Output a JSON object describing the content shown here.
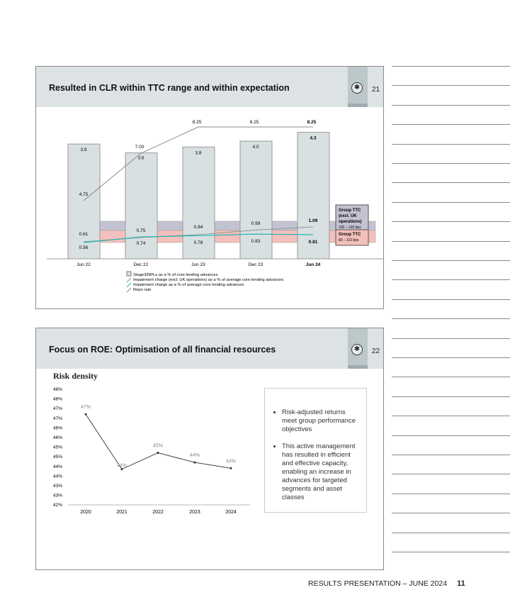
{
  "slide1": {
    "title": "Resulted in CLR within TTC range and within expectation",
    "page": "21",
    "chart_data": {
      "type": "bar",
      "categories": [
        "Jun 22",
        "Dec 22",
        "Jun 23",
        "Dec 23",
        "Jun 24"
      ],
      "series": [
        {
          "name": "Stage3/NPLs as a % of core lending advances",
          "values": [
            3.9,
            3.6,
            3.8,
            4.0,
            4.3
          ],
          "labels": [
            "3.9",
            "3.6",
            "3.8",
            "4.0",
            "4.3"
          ]
        },
        {
          "name": "Impairment charge (excl. UK operations)  as a % of average core lending advances",
          "values": [
            0.61,
            0.75,
            0.84,
            0.99,
            1.09
          ],
          "labels": [
            "0.61",
            "0.75",
            "0.84",
            "0.99",
            "1.09"
          ]
        },
        {
          "name": "Impairment charge as a % of average core lending advances",
          "values": [
            0.56,
            0.74,
            0.78,
            0.83,
            0.81
          ],
          "labels": [
            "0.56",
            "0.74",
            "0.78",
            "0.83",
            "0.81"
          ]
        },
        {
          "name": "Repo rate",
          "values": [
            4.75,
            7.0,
            8.25,
            8.25,
            8.25
          ],
          "labels": [
            "4.75",
            "7.00",
            "8.25",
            "8.25",
            "8.25"
          ]
        }
      ],
      "bands": [
        {
          "title": "Group TTC (excl. UK operations)",
          "range": "100 – 130 bps",
          "color": "#c3c2d2"
        },
        {
          "title": "Group TTC",
          "range": "80 – 110 bps",
          "color": "#f4c0bb"
        }
      ]
    }
  },
  "slide2": {
    "title": "Focus on ROE: Optimisation of all financial resources",
    "page": "22",
    "chart_data": {
      "type": "line",
      "title": "Risk density",
      "categories": [
        "2020",
        "2021",
        "2022",
        "2023",
        "2024"
      ],
      "values": [
        46.7,
        43.85,
        44.7,
        44.2,
        43.9
      ],
      "labels": [
        "47%",
        "44%",
        "45%",
        "44%",
        "44%"
      ],
      "yticks": [
        "48%",
        "48%",
        "47%",
        "47%",
        "46%",
        "46%",
        "45%",
        "45%",
        "44%",
        "44%",
        "43%",
        "43%",
        "42%"
      ],
      "ylim": [
        42,
        48
      ]
    },
    "bullets": [
      "Risk-adjusted returns meet group performance objectives",
      "This active management has resulted in efficient and effective capacity, enabling an increase in advances for targeted segments and asset classes"
    ]
  },
  "footer": {
    "text": "RESULTS PRESENTATION – JUNE 2024",
    "page": "11"
  }
}
